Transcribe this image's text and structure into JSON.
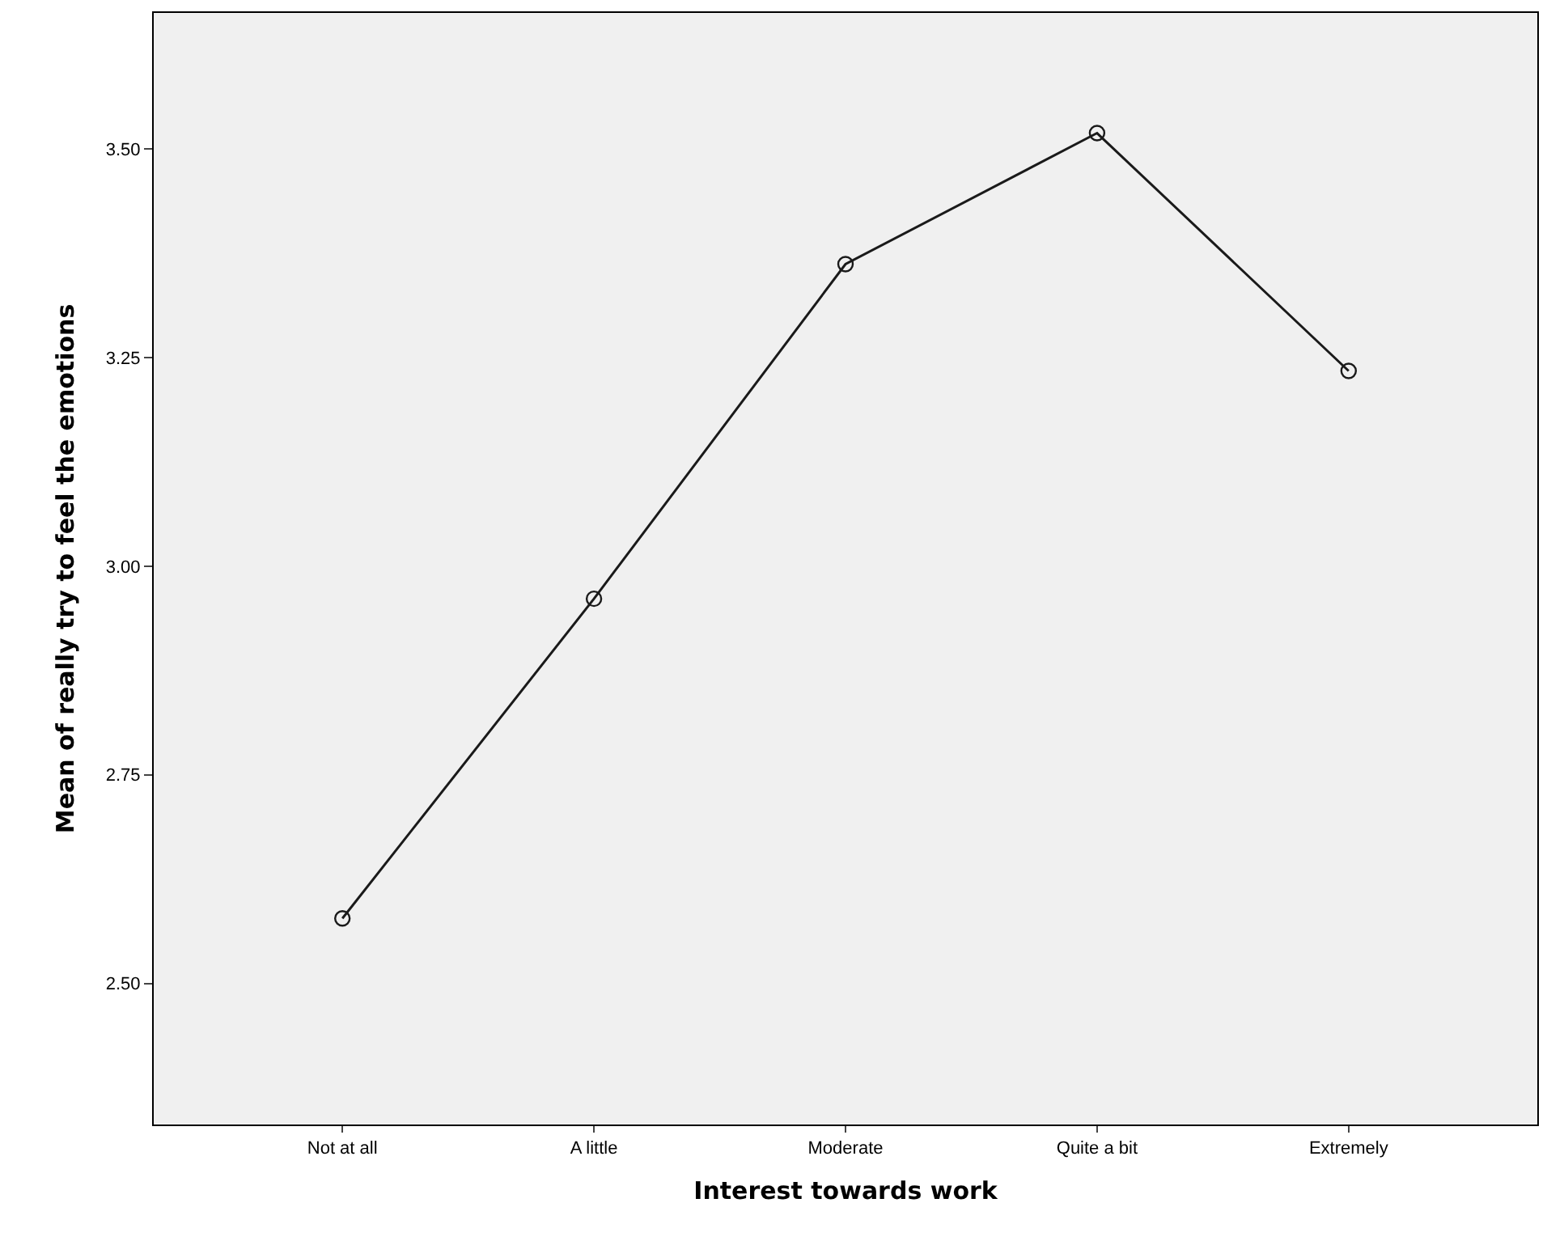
{
  "chart_data": {
    "type": "line",
    "xlabel": "Interest towards work",
    "ylabel": "Mean of really try to feel the emotions",
    "categories": [
      "Not at all",
      "A little",
      "Moderate",
      "Quite a bit",
      "Extremely"
    ],
    "series": [
      {
        "color": "#1a1a1a",
        "values": [
          2.578,
          2.961,
          3.362,
          3.519,
          3.234
        ]
      }
    ],
    "ylim": [
      2.331,
      3.663
    ],
    "yticks": [
      {
        "value": 2.5,
        "label": "2.50"
      },
      {
        "value": 2.75,
        "label": "2.75"
      },
      {
        "value": 3.0,
        "label": "3.00"
      },
      {
        "value": 3.25,
        "label": "3.25"
      },
      {
        "value": 3.5,
        "label": "3.50"
      }
    ],
    "grid": false,
    "marker": "circle",
    "line_style": "solid"
  }
}
